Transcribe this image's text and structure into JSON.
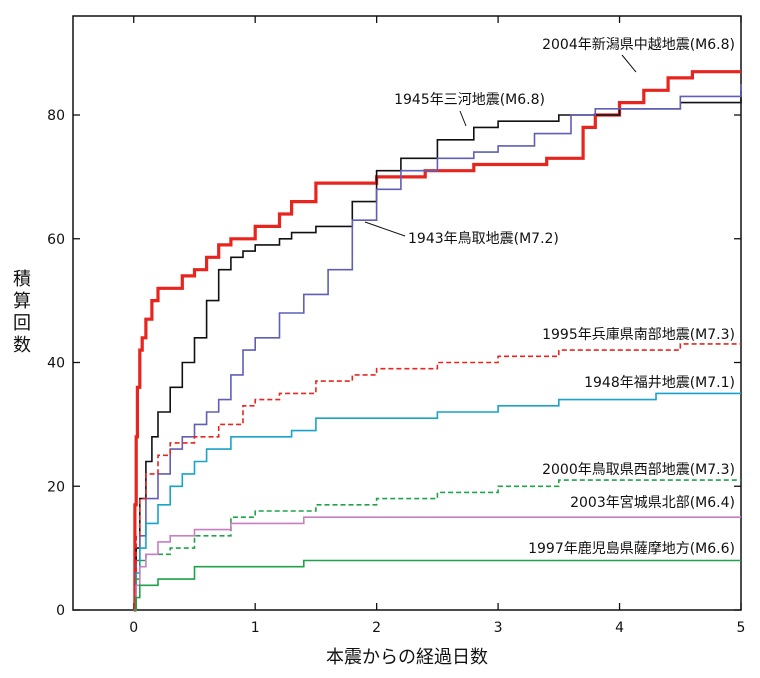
{
  "chart_data": {
    "type": "line",
    "title": "",
    "xlabel": "本震からの経過日数",
    "ylabel": "積算回数",
    "xlim": [
      -0.5,
      5
    ],
    "ylim": [
      0,
      96
    ],
    "xticks": [
      0,
      1,
      2,
      3,
      4,
      5
    ],
    "xtick_labels": [
      "0",
      "1",
      "2",
      "3",
      "4",
      "5"
    ],
    "yticks": [
      0,
      20,
      40,
      60,
      80
    ],
    "ytick_labels": [
      "0",
      "20",
      "40",
      "60",
      "80"
    ],
    "grid": false,
    "legend": "inline labels",
    "series": [
      {
        "name": "2004年新潟県中越地震(M6.8)",
        "color": "#e8241e",
        "style": "solid",
        "width": "thick",
        "x": [
          0,
          0.01,
          0.02,
          0.03,
          0.05,
          0.07,
          0.1,
          0.15,
          0.2,
          0.28,
          0.4,
          0.5,
          0.6,
          0.7,
          0.8,
          1.0,
          1.2,
          1.3,
          1.5,
          1.8,
          2.0,
          2.4,
          2.8,
          3.1,
          3.4,
          3.7,
          3.8,
          4.0,
          4.2,
          4.4,
          4.6,
          5.0
        ],
        "y": [
          0,
          17,
          28,
          36,
          42,
          44,
          47,
          50,
          52,
          52,
          54,
          55,
          57,
          59,
          60,
          62,
          64,
          66,
          69,
          69,
          70,
          71,
          72,
          72,
          73,
          78,
          80,
          82,
          84,
          86,
          87,
          87
        ]
      },
      {
        "name": "1945年三河地震(M6.8)",
        "color": "#111111",
        "style": "solid",
        "width": "normal",
        "x": [
          0,
          0.02,
          0.05,
          0.1,
          0.15,
          0.2,
          0.3,
          0.4,
          0.5,
          0.6,
          0.7,
          0.8,
          0.9,
          1.0,
          1.2,
          1.3,
          1.5,
          1.8,
          2.0,
          2.2,
          2.5,
          2.8,
          3.0,
          3.5,
          4.0,
          4.5,
          5.0
        ],
        "y": [
          0,
          10,
          18,
          24,
          28,
          32,
          36,
          40,
          44,
          50,
          55,
          57,
          58,
          59,
          60,
          61,
          62,
          66,
          71,
          73,
          76,
          78,
          79,
          80,
          81,
          82,
          84
        ]
      },
      {
        "name": "1943年鳥取地震(M7.2)",
        "color": "#5f5fb8",
        "style": "solid",
        "width": "normal",
        "x": [
          0,
          0.02,
          0.05,
          0.1,
          0.2,
          0.3,
          0.4,
          0.5,
          0.6,
          0.7,
          0.8,
          0.9,
          1.0,
          1.2,
          1.4,
          1.6,
          1.8,
          2.0,
          2.2,
          2.5,
          2.8,
          3.0,
          3.3,
          3.6,
          3.8,
          4.0,
          4.5,
          5.0
        ],
        "y": [
          0,
          8,
          12,
          18,
          22,
          26,
          28,
          30,
          32,
          34,
          38,
          42,
          44,
          48,
          51,
          55,
          63,
          68,
          71,
          73,
          74,
          75,
          77,
          80,
          81,
          81,
          83,
          85
        ]
      },
      {
        "name": "1995年兵庫県南部地震(M7.3)",
        "color": "#e8241e",
        "style": "dashed",
        "width": "normal",
        "x": [
          0,
          0.02,
          0.05,
          0.1,
          0.2,
          0.3,
          0.5,
          0.7,
          0.9,
          1.0,
          1.2,
          1.5,
          1.8,
          2.0,
          2.5,
          3.0,
          3.5,
          4.0,
          4.5,
          5.0
        ],
        "y": [
          0,
          12,
          18,
          22,
          25,
          27,
          28,
          30,
          33,
          34,
          35,
          37,
          38,
          39,
          40,
          41,
          42,
          42,
          43,
          43
        ]
      },
      {
        "name": "1948年福井地震(M7.1)",
        "color": "#1aa3c8",
        "style": "solid",
        "width": "normal",
        "x": [
          0,
          0.02,
          0.05,
          0.1,
          0.2,
          0.3,
          0.4,
          0.5,
          0.6,
          0.8,
          1.0,
          1.3,
          1.5,
          2.0,
          2.5,
          3.0,
          3.5,
          4.0,
          4.3,
          5.0
        ],
        "y": [
          0,
          6,
          10,
          14,
          17,
          20,
          22,
          24,
          26,
          28,
          28,
          29,
          31,
          31,
          32,
          33,
          34,
          34,
          35,
          35
        ]
      },
      {
        "name": "2000年鳥取県西部地震(M7.3)",
        "color": "#1fa34a",
        "style": "dashed",
        "width": "normal",
        "x": [
          0,
          0.02,
          0.05,
          0.1,
          0.3,
          0.5,
          0.8,
          1.0,
          1.5,
          2.0,
          2.5,
          3.0,
          3.5,
          4.0,
          4.5,
          5.0
        ],
        "y": [
          0,
          5,
          8,
          9,
          10,
          12,
          15,
          16,
          17,
          18,
          19,
          20,
          21,
          21,
          21,
          21
        ]
      },
      {
        "name": "2003年宮城県北部(M6.4)",
        "color": "#c77fc2",
        "style": "solid",
        "width": "normal",
        "x": [
          0,
          0.02,
          0.05,
          0.1,
          0.2,
          0.3,
          0.5,
          0.8,
          1.0,
          1.4,
          1.7,
          2.0,
          3.0,
          4.0,
          5.0
        ],
        "y": [
          0,
          4,
          7,
          9,
          11,
          12,
          13,
          14,
          14,
          15,
          15,
          15,
          15,
          15,
          15
        ]
      },
      {
        "name": "1997年鹿児島県薩摩地方(M6.6)",
        "color": "#1fa34a",
        "style": "solid",
        "width": "normal",
        "x": [
          0,
          0.02,
          0.05,
          0.2,
          0.5,
          1.0,
          1.4,
          2.0,
          3.0,
          4.0,
          5.0
        ],
        "y": [
          0,
          2,
          4,
          5,
          7,
          7,
          8,
          8,
          8,
          8,
          8
        ]
      }
    ]
  }
}
